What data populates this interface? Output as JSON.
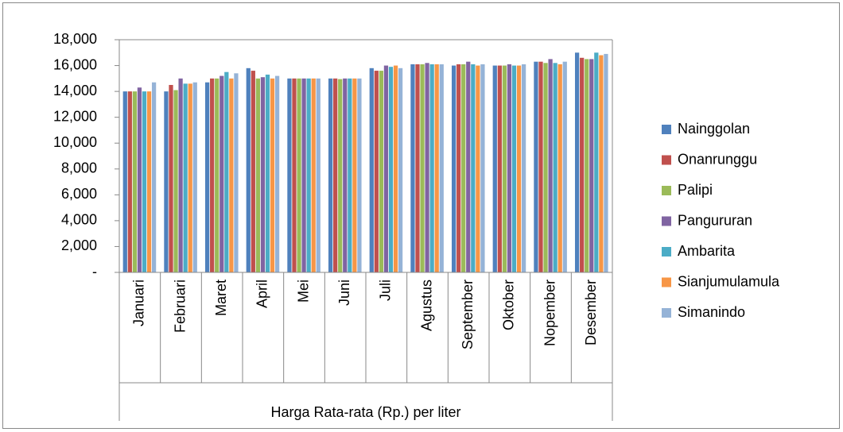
{
  "chart_data": {
    "type": "bar",
    "x_group_label": "Harga Rata-rata (Rp.) per liter",
    "categories": [
      "Januari",
      "Februari",
      "Maret",
      "April",
      "Mei",
      "Juni",
      "Juli",
      "Agustus",
      "September",
      "Oktober",
      "Nopember",
      "Desember"
    ],
    "series": [
      {
        "name": "Nainggolan",
        "color": "#4f81bd",
        "values": [
          14000,
          14000,
          14700,
          15800,
          15000,
          15000,
          15800,
          16100,
          16000,
          16000,
          16300,
          17000
        ]
      },
      {
        "name": "Onanrunggu",
        "color": "#c0504d",
        "values": [
          14000,
          14500,
          15000,
          15600,
          15000,
          15000,
          15600,
          16100,
          16100,
          16000,
          16300,
          16600
        ]
      },
      {
        "name": "Palipi",
        "color": "#9bbb59",
        "values": [
          14000,
          14100,
          15000,
          15000,
          15000,
          14950,
          15600,
          16100,
          16100,
          16000,
          16200,
          16500
        ]
      },
      {
        "name": "Pangururan",
        "color": "#8064a2",
        "values": [
          14300,
          15000,
          15200,
          15100,
          15000,
          15000,
          16000,
          16200,
          16300,
          16100,
          16500,
          16500
        ]
      },
      {
        "name": "Ambarita",
        "color": "#4bacc6",
        "values": [
          14000,
          14600,
          15500,
          15300,
          15000,
          15000,
          15900,
          16100,
          16100,
          16000,
          16200,
          17000
        ]
      },
      {
        "name": "Sianjumulamula",
        "color": "#f79646",
        "values": [
          14000,
          14600,
          15000,
          15000,
          15000,
          15000,
          16000,
          16100,
          16000,
          16000,
          16100,
          16800
        ]
      },
      {
        "name": "Simanindo",
        "color": "#95b3d7",
        "values": [
          14700,
          14700,
          15400,
          15200,
          15000,
          15000,
          15800,
          16100,
          16100,
          16100,
          16300,
          16900
        ]
      }
    ],
    "ylim": [
      0,
      18000
    ],
    "yticks": [
      {
        "value": 0,
        "label": "-"
      },
      {
        "value": 2000,
        "label": "2,000"
      },
      {
        "value": 4000,
        "label": "4,000"
      },
      {
        "value": 6000,
        "label": "6,000"
      },
      {
        "value": 8000,
        "label": "8,000"
      },
      {
        "value": 10000,
        "label": "10,000"
      },
      {
        "value": 12000,
        "label": "12,000"
      },
      {
        "value": 14000,
        "label": "14,000"
      },
      {
        "value": 16000,
        "label": "16,000"
      },
      {
        "value": 18000,
        "label": "18,000"
      }
    ],
    "grid": false,
    "legend": "right"
  }
}
